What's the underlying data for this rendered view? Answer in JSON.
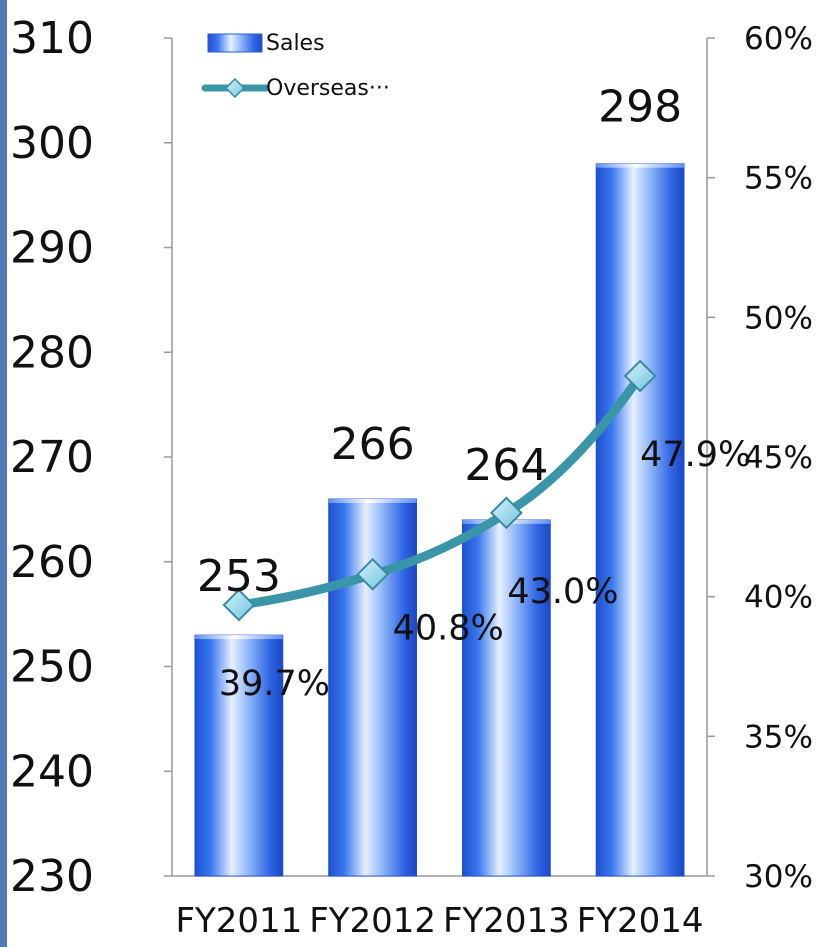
{
  "chart_data": {
    "type": "bar",
    "categories": [
      "FY2011",
      "FY2012",
      "FY2013",
      "FY2014"
    ],
    "series": [
      {
        "name": "Sales",
        "type": "bar",
        "axis": "left",
        "values": [
          253,
          266,
          264,
          298
        ],
        "labels": [
          "253",
          "266",
          "264",
          "298"
        ],
        "color": "#2f6ee6"
      },
      {
        "name": "Overseas···",
        "type": "line",
        "axis": "right",
        "values": [
          39.7,
          40.8,
          43.0,
          47.9
        ],
        "labels": [
          "39.7%",
          "40.8%",
          "43.0%",
          "47.9%"
        ],
        "color": "#3a95a8",
        "marker": "diamond",
        "marker_color": "#8fd3ea"
      }
    ],
    "y_left": {
      "ylim": [
        230,
        310
      ],
      "ticks": [
        "230",
        "240",
        "250",
        "260",
        "270",
        "280",
        "290",
        "300",
        "310"
      ]
    },
    "y_right": {
      "ylim": [
        30,
        60
      ],
      "ticks": [
        "30%",
        "35%",
        "40%",
        "45%",
        "50%",
        "55%",
        "60%"
      ]
    },
    "title": "",
    "xlabel": "",
    "ylabel": "",
    "grid": false,
    "legend_position": "top-left",
    "colors": {
      "left_strip": "#4f7ab8",
      "axis": "#999999"
    }
  }
}
